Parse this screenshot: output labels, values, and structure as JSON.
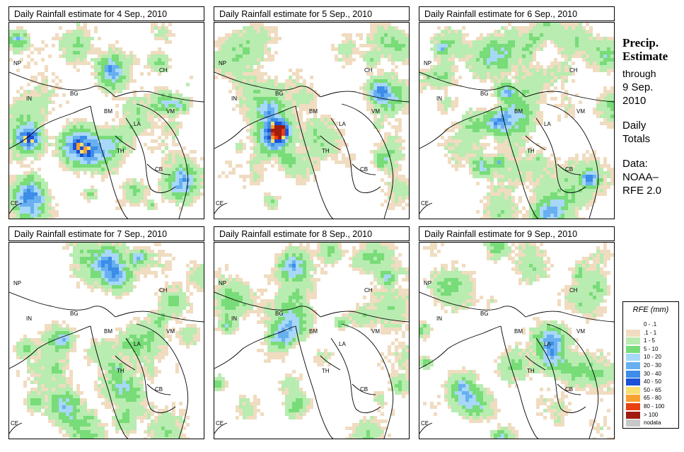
{
  "panels": [
    {
      "title": "Daily Rainfall estimate for  4 Sep., 2010",
      "seed": 11,
      "wet": 0.55
    },
    {
      "title": "Daily Rainfall estimate for  5 Sep., 2010",
      "seed": 23,
      "wet": 0.45
    },
    {
      "title": "Daily Rainfall estimate for  6 Sep., 2010",
      "seed": 37,
      "wet": 0.5
    },
    {
      "title": "Daily Rainfall estimate for  7 Sep., 2010",
      "seed": 41,
      "wet": 0.52
    },
    {
      "title": "Daily Rainfall estimate for  8 Sep., 2010",
      "seed": 53,
      "wet": 0.48
    },
    {
      "title": "Daily Rainfall estimate for  9 Sep., 2010",
      "seed": 67,
      "wet": 0.5
    }
  ],
  "country_labels": [
    "NP",
    "IN",
    "BG",
    "BM",
    "CH",
    "VM",
    "LA",
    "TH",
    "CB",
    "CE"
  ],
  "side": {
    "title_line1": "Precip.",
    "title_line2": "Estimate",
    "through": "through",
    "date_line1": "9 Sep.",
    "date_line2": "2010",
    "daily_line1": "Daily",
    "daily_line2": "Totals",
    "data_line1": "Data:",
    "data_line2": "NOAA–",
    "data_line3": "RFE 2.0"
  },
  "legend": {
    "title": "RFE (mm)",
    "items": [
      {
        "label": "0 - .1",
        "color": "#ffffff"
      },
      {
        "label": ".1 - 1",
        "color": "#f0dcc0"
      },
      {
        "label": "1 - 5",
        "color": "#b8ecb0"
      },
      {
        "label": "5 - 10",
        "color": "#78dc78"
      },
      {
        "label": "10 - 20",
        "color": "#a8d8f8"
      },
      {
        "label": "20 - 30",
        "color": "#68b0f0"
      },
      {
        "label": "30 - 40",
        "color": "#3c8ce8"
      },
      {
        "label": "40 - 50",
        "color": "#1c50d8"
      },
      {
        "label": "50 - 65",
        "color": "#f8e070"
      },
      {
        "label": "65 - 80",
        "color": "#f8a030"
      },
      {
        "label": "80 - 100",
        "color": "#e84010"
      },
      {
        "label": "> 100",
        "color": "#a01c10"
      },
      {
        "label": "nodata",
        "color": "#c8c8c8"
      }
    ]
  }
}
